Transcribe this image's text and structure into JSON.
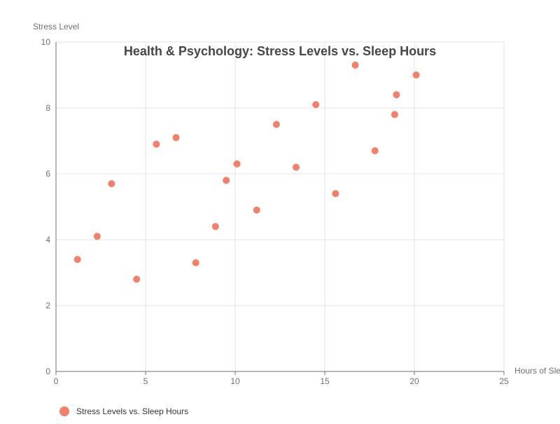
{
  "chart_data": {
    "type": "scatter",
    "title": "Health & Psychology: Stress Levels vs. Sleep Hours",
    "xlabel": "Hours of Sleep",
    "ylabel": "Stress Level",
    "xlim": [
      0,
      25
    ],
    "ylim": [
      0,
      10
    ],
    "xticks": [
      0,
      5,
      10,
      15,
      20,
      25
    ],
    "yticks": [
      0,
      2,
      4,
      6,
      8,
      10
    ],
    "grid": true,
    "legend_position": "bottom-left",
    "series": [
      {
        "name": "Stress Levels vs. Sleep Hours",
        "color": "#f47f6b",
        "points": [
          {
            "x": 1.2,
            "y": 3.4
          },
          {
            "x": 2.3,
            "y": 4.1
          },
          {
            "x": 3.1,
            "y": 5.7
          },
          {
            "x": 4.5,
            "y": 2.8
          },
          {
            "x": 5.6,
            "y": 6.9
          },
          {
            "x": 6.7,
            "y": 7.1
          },
          {
            "x": 7.8,
            "y": 3.3
          },
          {
            "x": 8.9,
            "y": 4.4
          },
          {
            "x": 9.5,
            "y": 5.8
          },
          {
            "x": 10.1,
            "y": 6.3
          },
          {
            "x": 11.2,
            "y": 4.9
          },
          {
            "x": 12.3,
            "y": 7.5
          },
          {
            "x": 13.4,
            "y": 6.2
          },
          {
            "x": 14.5,
            "y": 8.1
          },
          {
            "x": 15.6,
            "y": 5.4
          },
          {
            "x": 16.7,
            "y": 9.3
          },
          {
            "x": 17.8,
            "y": 6.7
          },
          {
            "x": 18.9,
            "y": 7.8
          },
          {
            "x": 19.0,
            "y": 8.4
          },
          {
            "x": 20.1,
            "y": 9.0
          }
        ]
      }
    ]
  }
}
